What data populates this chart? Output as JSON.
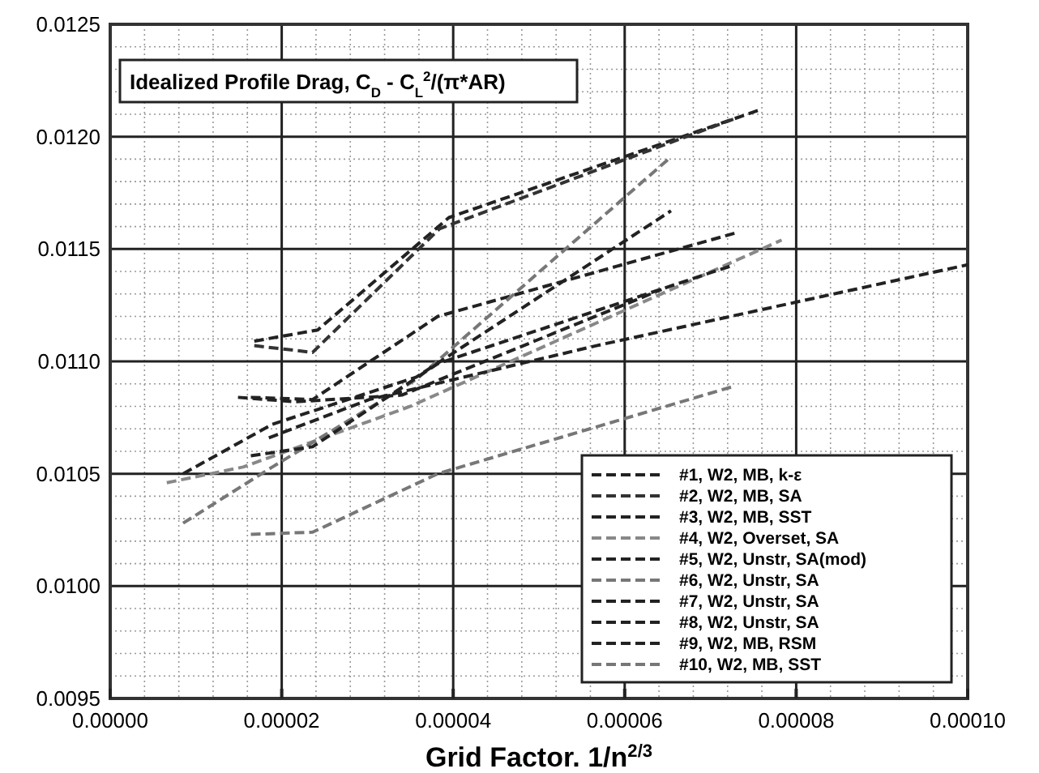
{
  "chart_data": {
    "type": "line",
    "title": "Idealized Profile Drag, C$_{D}$ - C$_{L}$$^{2}$/(π*AR)",
    "xlabel": "Grid Factor. 1/n$^{2/3}$",
    "xlim": [
      0,
      0.0001
    ],
    "ylim": [
      0.0095,
      0.0125
    ],
    "xticks": [
      {
        "value": 0,
        "label": "0.00000"
      },
      {
        "value": 2e-05,
        "label": "0.00002"
      },
      {
        "value": 4e-05,
        "label": "0.00004"
      },
      {
        "value": 6e-05,
        "label": "0.00006"
      },
      {
        "value": 8e-05,
        "label": "0.00008"
      },
      {
        "value": 0.0001,
        "label": "0.00010"
      }
    ],
    "yticks": [
      0.0095,
      {
        "value": 0.01,
        "label": "0.0100"
      },
      0.0105,
      {
        "value": 0.011,
        "label": "0.0110"
      },
      0.0115,
      {
        "value": 0.012,
        "label": "0.0120"
      },
      0.0125
    ],
    "grid": true,
    "legend": "bottom right",
    "line_style": "dashed",
    "series": [
      {
        "name": "#1, W2, MB, k-ε",
        "color": "#222222",
        "x": [
          1.68e-05,
          2.42e-05,
          3.95e-05,
          7.58e-05
        ],
        "values": [
          0.01109,
          0.01114,
          0.01164,
          0.01212
        ]
      },
      {
        "name": "#2, W2, MB, SA",
        "color": "#333333",
        "x": [
          1.68e-05,
          2.36e-05,
          3.84e-05,
          7.28e-05
        ],
        "values": [
          0.01107,
          0.01104,
          0.01159,
          0.01208
        ]
      },
      {
        "name": "#3, W2, MB, SST",
        "color": "#222222",
        "x": [
          1.64e-05,
          2.36e-05,
          3.82e-05,
          7.28e-05
        ],
        "values": [
          0.01084,
          0.01083,
          0.0112,
          0.01157
        ]
      },
      {
        "name": "#4, W2, Overset, SA",
        "color": "#888888",
        "x": [
          6.6e-06,
          1.55e-05,
          3.5e-05,
          7.83e-05
        ],
        "values": [
          0.01046,
          0.01053,
          0.0108,
          0.01154
        ]
      },
      {
        "name": "#5, W2, Unstr, SA(mod)",
        "color": "#222222",
        "x": [
          1.49e-05,
          2.16e-05,
          3.4e-05,
          6.43e-05
        ],
        "values": [
          0.01084,
          0.01082,
          0.01085,
          0.01132
        ]
      },
      {
        "name": "#6, W2, Unstr, SA",
        "color": "#777777",
        "x": [
          8.5e-06,
          1.89e-05,
          3.57e-05,
          6.54e-05
        ],
        "values": [
          0.01028,
          0.01053,
          0.01092,
          0.01191
        ]
      },
      {
        "name": "#7, W2, Unstr, SA",
        "color": "#222222",
        "x": [
          8.5e-06,
          1.89e-05,
          3.57e-05,
          6.54e-05
        ],
        "values": [
          0.0105,
          0.01072,
          0.01093,
          0.01167
        ]
      },
      {
        "name": "#8, W2, Unstr, SA",
        "color": "#222222",
        "x": [
          1.85e-05,
          3.02e-05,
          5.67e-05,
          0.0001
        ],
        "values": [
          0.01066,
          0.01083,
          0.01107,
          0.01143
        ]
      },
      {
        "name": "#9, W2, MB, RSM",
        "color": "#222222",
        "x": [
          1.64e-05,
          2.36e-05,
          3.82e-05,
          7.28e-05
        ],
        "values": [
          0.01058,
          0.01062,
          0.01099,
          0.01143
        ]
      },
      {
        "name": "#10, W2, MB, SST",
        "color": "#777777",
        "x": [
          1.64e-05,
          2.36e-05,
          3.82e-05,
          7.28e-05
        ],
        "values": [
          0.01023,
          0.01024,
          0.0105,
          0.01089
        ]
      }
    ]
  }
}
